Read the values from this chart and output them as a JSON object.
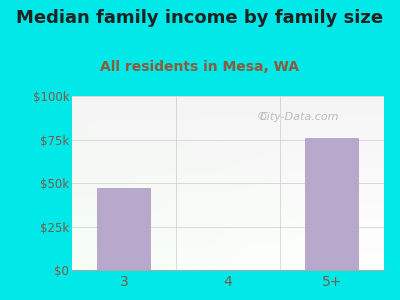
{
  "title": "Median family income by family size",
  "subtitle": "All residents in Mesa, WA",
  "categories": [
    "3",
    "4",
    "5+"
  ],
  "values": [
    47000,
    0,
    76000
  ],
  "bar_color": "#b8a8cc",
  "bg_color": "#00e8e8",
  "title_color": "#222222",
  "subtitle_color": "#8b5a3a",
  "axis_label_color": "#7a5a4a",
  "ytick_labels": [
    "$0",
    "$25k",
    "$50k",
    "$75k",
    "$100k"
  ],
  "ytick_values": [
    0,
    25000,
    50000,
    75000,
    100000
  ],
  "ylim": [
    0,
    100000
  ],
  "watermark": "City-Data.com",
  "title_fontsize": 13,
  "subtitle_fontsize": 10
}
